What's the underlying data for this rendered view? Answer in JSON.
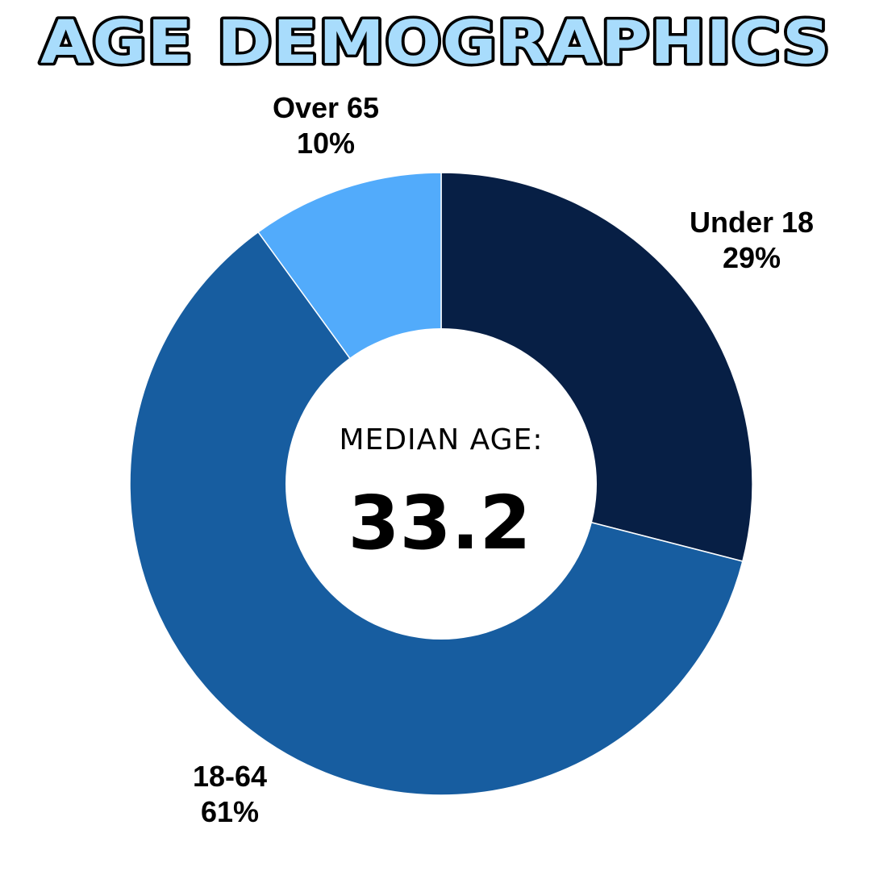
{
  "chart_data": {
    "type": "pie",
    "title": "AGE DEMOGRAPHICS",
    "categories": [
      "Under 18",
      "18-64",
      "Over 65"
    ],
    "values": [
      29,
      61,
      10
    ],
    "value_labels": [
      "29%",
      "61%",
      "10%"
    ],
    "colors": [
      "#071f45",
      "#175da0",
      "#52abfb"
    ],
    "center_label": "MEDIAN AGE:",
    "center_value": "33.2",
    "title_fill_color": "#a8dcfc",
    "title_outline_color": "#000000",
    "donut": true
  }
}
